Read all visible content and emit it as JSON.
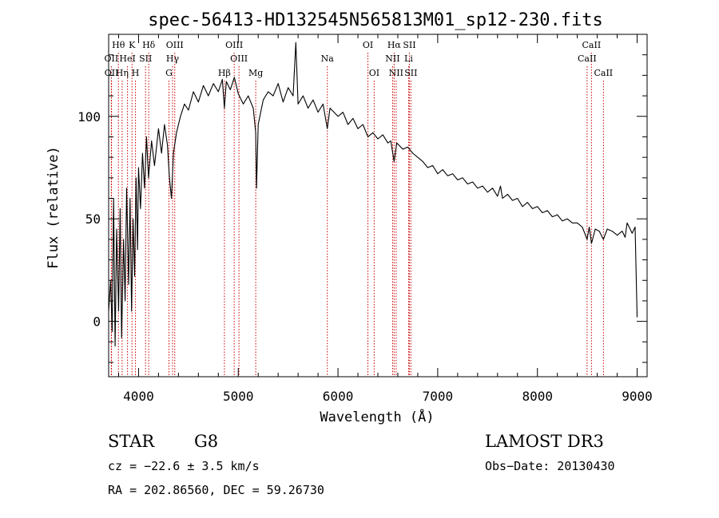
{
  "chart_data": {
    "type": "line",
    "title": "spec-56413-HD132545N565813M01_sp12-230.fits",
    "xlabel": "Wavelength (Å)",
    "ylabel": "Flux (relative)",
    "xlim": [
      3700,
      9100
    ],
    "ylim": [
      -27,
      140
    ],
    "x_ticks": [
      4000,
      5000,
      6000,
      7000,
      8000,
      9000
    ],
    "y_ticks": [
      0,
      50,
      100
    ],
    "grid": false,
    "line_color": "#000000",
    "marker_color": "#cc0000",
    "series": [
      {
        "values": [
          [
            3700,
            5
          ],
          [
            3720,
            20
          ],
          [
            3735,
            -5
          ],
          [
            3750,
            60
          ],
          [
            3765,
            -12
          ],
          [
            3780,
            45
          ],
          [
            3800,
            5
          ],
          [
            3815,
            55
          ],
          [
            3830,
            -8
          ],
          [
            3850,
            40
          ],
          [
            3865,
            10
          ],
          [
            3880,
            65
          ],
          [
            3900,
            18
          ],
          [
            3915,
            60
          ],
          [
            3930,
            5
          ],
          [
            3945,
            50
          ],
          [
            3960,
            22
          ],
          [
            3975,
            70
          ],
          [
            3990,
            35
          ],
          [
            4000,
            75
          ],
          [
            4020,
            55
          ],
          [
            4040,
            82
          ],
          [
            4060,
            65
          ],
          [
            4080,
            90
          ],
          [
            4100,
            70
          ],
          [
            4130,
            88
          ],
          [
            4160,
            76
          ],
          [
            4200,
            94
          ],
          [
            4230,
            82
          ],
          [
            4260,
            96
          ],
          [
            4290,
            86
          ],
          [
            4310,
            70
          ],
          [
            4330,
            60
          ],
          [
            4350,
            82
          ],
          [
            4380,
            92
          ],
          [
            4420,
            100
          ],
          [
            4460,
            106
          ],
          [
            4500,
            103
          ],
          [
            4550,
            112
          ],
          [
            4600,
            107
          ],
          [
            4650,
            115
          ],
          [
            4700,
            110
          ],
          [
            4750,
            116
          ],
          [
            4800,
            112
          ],
          [
            4840,
            118
          ],
          [
            4861,
            104
          ],
          [
            4880,
            117
          ],
          [
            4920,
            113
          ],
          [
            4960,
            119
          ],
          [
            5000,
            111
          ],
          [
            5050,
            106
          ],
          [
            5100,
            110
          ],
          [
            5150,
            104
          ],
          [
            5175,
            92
          ],
          [
            5183,
            65
          ],
          [
            5200,
            96
          ],
          [
            5250,
            108
          ],
          [
            5300,
            112
          ],
          [
            5350,
            110
          ],
          [
            5400,
            116
          ],
          [
            5450,
            107
          ],
          [
            5500,
            114
          ],
          [
            5550,
            110
          ],
          [
            5577,
            136
          ],
          [
            5600,
            106
          ],
          [
            5650,
            110
          ],
          [
            5700,
            104
          ],
          [
            5750,
            108
          ],
          [
            5800,
            102
          ],
          [
            5850,
            106
          ],
          [
            5893,
            94
          ],
          [
            5920,
            104
          ],
          [
            6000,
            100
          ],
          [
            6050,
            102
          ],
          [
            6100,
            96
          ],
          [
            6150,
            99
          ],
          [
            6200,
            94
          ],
          [
            6250,
            96
          ],
          [
            6300,
            90
          ],
          [
            6350,
            92
          ],
          [
            6400,
            89
          ],
          [
            6450,
            91
          ],
          [
            6500,
            87
          ],
          [
            6530,
            88
          ],
          [
            6563,
            78
          ],
          [
            6590,
            87
          ],
          [
            6650,
            84
          ],
          [
            6700,
            85
          ],
          [
            6750,
            82
          ],
          [
            6800,
            80
          ],
          [
            6850,
            78
          ],
          [
            6900,
            75
          ],
          [
            6950,
            76
          ],
          [
            7000,
            72
          ],
          [
            7050,
            74
          ],
          [
            7100,
            71
          ],
          [
            7150,
            72
          ],
          [
            7200,
            69
          ],
          [
            7250,
            70
          ],
          [
            7300,
            67
          ],
          [
            7350,
            68
          ],
          [
            7400,
            65
          ],
          [
            7450,
            66
          ],
          [
            7500,
            63
          ],
          [
            7550,
            65
          ],
          [
            7600,
            61
          ],
          [
            7630,
            66
          ],
          [
            7650,
            60
          ],
          [
            7700,
            62
          ],
          [
            7750,
            59
          ],
          [
            7800,
            60
          ],
          [
            7850,
            56
          ],
          [
            7900,
            58
          ],
          [
            7950,
            55
          ],
          [
            8000,
            56
          ],
          [
            8050,
            53
          ],
          [
            8100,
            54
          ],
          [
            8150,
            51
          ],
          [
            8200,
            52
          ],
          [
            8250,
            49
          ],
          [
            8300,
            50
          ],
          [
            8350,
            48
          ],
          [
            8400,
            48
          ],
          [
            8450,
            46
          ],
          [
            8498,
            40
          ],
          [
            8520,
            46
          ],
          [
            8542,
            38
          ],
          [
            8580,
            45
          ],
          [
            8620,
            44
          ],
          [
            8662,
            40
          ],
          [
            8700,
            45
          ],
          [
            8750,
            44
          ],
          [
            8800,
            42
          ],
          [
            8850,
            44
          ],
          [
            8880,
            41
          ],
          [
            8900,
            48
          ],
          [
            8950,
            43
          ],
          [
            8980,
            46
          ],
          [
            9000,
            2
          ]
        ]
      }
    ],
    "line_markers": [
      {
        "label": "Hθ",
        "x": 3798,
        "row": 0
      },
      {
        "label": "OII",
        "x": 3727,
        "row": 1
      },
      {
        "label": "OII",
        "x": 3729,
        "row": 2
      },
      {
        "label": "Hη",
        "x": 3835,
        "row": 2
      },
      {
        "label": "K",
        "x": 3934,
        "row": 0
      },
      {
        "label": "HeI",
        "x": 3889,
        "row": 1
      },
      {
        "label": "SII",
        "x": 4070,
        "row": 1
      },
      {
        "label": "H",
        "x": 3969,
        "row": 2
      },
      {
        "label": "Hδ",
        "x": 4102,
        "row": 0
      },
      {
        "label": "OIII",
        "x": 4363,
        "row": 0
      },
      {
        "label": "Hγ",
        "x": 4341,
        "row": 1
      },
      {
        "label": "G",
        "x": 4305,
        "row": 2
      },
      {
        "label": "Hβ",
        "x": 4861,
        "row": 2
      },
      {
        "label": "OIII",
        "x": 4959,
        "row": 0
      },
      {
        "label": "OIII",
        "x": 5007,
        "row": 1
      },
      {
        "label": "Mg",
        "x": 5175,
        "row": 2
      },
      {
        "label": "Na",
        "x": 5893,
        "row": 1
      },
      {
        "label": "OI",
        "x": 6300,
        "row": 0
      },
      {
        "label": "OI",
        "x": 6363,
        "row": 2
      },
      {
        "label": "Hα",
        "x": 6563,
        "row": 0
      },
      {
        "label": "SII",
        "x": 6716,
        "row": 0
      },
      {
        "label": "NII",
        "x": 6548,
        "row": 1
      },
      {
        "label": "Li",
        "x": 6708,
        "row": 1
      },
      {
        "label": "NII",
        "x": 6583,
        "row": 2
      },
      {
        "label": "SII",
        "x": 6731,
        "row": 2
      },
      {
        "label": "CaII",
        "x": 8542,
        "row": 0
      },
      {
        "label": "CaII",
        "x": 8498,
        "row": 1
      },
      {
        "label": "CaII",
        "x": 8662,
        "row": 2
      }
    ]
  },
  "info": {
    "class": "STAR",
    "subclass": "G8",
    "survey": "LAMOST DR3",
    "cz": "cz = −22.6 ± 3.5 km/s",
    "obs_date": "Obs−Date: 20130430",
    "coords": "RA = 202.86560, DEC =  59.26730"
  }
}
